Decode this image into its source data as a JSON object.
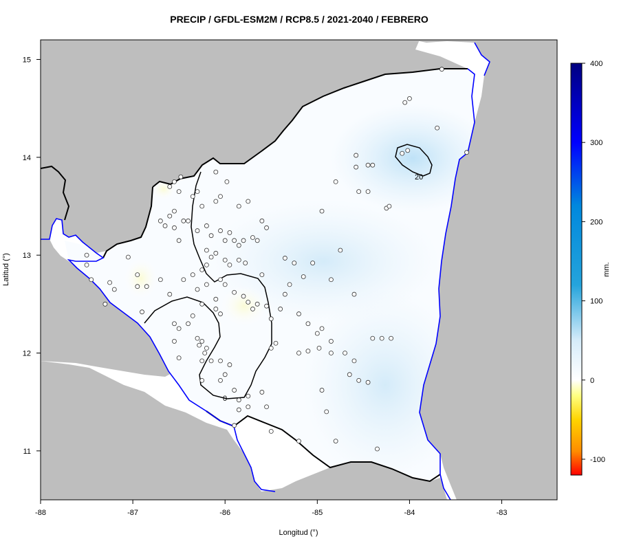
{
  "title": "PRECIP / GFDL-ESM2M / RCP8.5 / 2021-2040 / FEBRERO",
  "x_axis": {
    "label": "Longitud (°)",
    "ticks": [
      {
        "value": -88,
        "label": "-88"
      },
      {
        "value": -87,
        "label": "-87"
      },
      {
        "value": -86,
        "label": "-86"
      },
      {
        "value": -85,
        "label": "-85"
      },
      {
        "value": -84,
        "label": "-84"
      },
      {
        "value": -83,
        "label": "-83"
      }
    ],
    "range": [
      -88,
      -82.4
    ]
  },
  "y_axis": {
    "label": "Latitud (°)",
    "ticks": [
      {
        "value": 11,
        "label": "11"
      },
      {
        "value": 12,
        "label": "12"
      },
      {
        "value": 13,
        "label": "13"
      },
      {
        "value": 14,
        "label": "14"
      },
      {
        "value": 15,
        "label": "15"
      }
    ],
    "range": [
      10.5,
      15.2
    ]
  },
  "colorbar": {
    "unit_label": "mm.",
    "min": -120,
    "max": 400,
    "ticks": [
      {
        "value": -100,
        "label": "-100"
      },
      {
        "value": 0,
        "label": "0"
      },
      {
        "value": 100,
        "label": "100"
      },
      {
        "value": 200,
        "label": "200"
      },
      {
        "value": 300,
        "label": "300"
      },
      {
        "value": 400,
        "label": "400"
      }
    ],
    "stops": [
      {
        "value": -120,
        "color": "#ff0000"
      },
      {
        "value": -90,
        "color": "#ff8c00"
      },
      {
        "value": -50,
        "color": "#ffd400"
      },
      {
        "value": -20,
        "color": "#ffff80"
      },
      {
        "value": 0,
        "color": "#ffffff"
      },
      {
        "value": 50,
        "color": "#d6ecfa"
      },
      {
        "value": 120,
        "color": "#25a4dc"
      },
      {
        "value": 220,
        "color": "#0088dd"
      },
      {
        "value": 300,
        "color": "#0000ff"
      },
      {
        "value": 400,
        "color": "#000080"
      }
    ]
  },
  "contours": [
    {
      "level": 0,
      "label": "0",
      "label_pos": [
        -86,
        11.52
      ]
    },
    {
      "level": 20,
      "label": "20",
      "label_pos": [
        -84.08,
        13.8
      ]
    }
  ],
  "colors": {
    "land_outside": "#bebebe",
    "water": "#ffffff",
    "coastline": "#0000ff",
    "border": "#000000",
    "contour": "#000000",
    "station_fill": "#ffffff",
    "station_stroke": "#333333"
  },
  "stations": [
    [
      -87.5,
      13.0
    ],
    [
      -87.5,
      12.9
    ],
    [
      -87.45,
      12.75
    ],
    [
      -87.25,
      12.72
    ],
    [
      -87.2,
      12.65
    ],
    [
      -87.3,
      12.5
    ],
    [
      -87.05,
      12.98
    ],
    [
      -86.95,
      12.8
    ],
    [
      -86.95,
      12.68
    ],
    [
      -86.85,
      12.68
    ],
    [
      -86.9,
      12.42
    ],
    [
      -86.7,
      12.75
    ],
    [
      -86.6,
      12.6
    ],
    [
      -86.55,
      12.3
    ],
    [
      -86.55,
      12.12
    ],
    [
      -86.5,
      11.95
    ],
    [
      -86.7,
      13.35
    ],
    [
      -86.6,
      13.4
    ],
    [
      -86.65,
      13.3
    ],
    [
      -86.55,
      13.45
    ],
    [
      -86.55,
      13.28
    ],
    [
      -86.5,
      13.15
    ],
    [
      -86.45,
      13.35
    ],
    [
      -86.4,
      13.35
    ],
    [
      -86.3,
      13.25
    ],
    [
      -86.35,
      13.6
    ],
    [
      -86.5,
      13.65
    ],
    [
      -86.6,
      13.7
    ],
    [
      -86.55,
      13.75
    ],
    [
      -86.48,
      13.8
    ],
    [
      -86.3,
      13.65
    ],
    [
      -86.25,
      13.5
    ],
    [
      -86.1,
      13.55
    ],
    [
      -86.05,
      13.6
    ],
    [
      -86.1,
      13.85
    ],
    [
      -85.98,
      13.75
    ],
    [
      -85.85,
      13.5
    ],
    [
      -85.75,
      13.55
    ],
    [
      -85.6,
      13.35
    ],
    [
      -85.55,
      13.28
    ],
    [
      -86.2,
      13.3
    ],
    [
      -86.15,
      13.2
    ],
    [
      -86.05,
      13.25
    ],
    [
      -85.95,
      13.23
    ],
    [
      -86.0,
      13.15
    ],
    [
      -85.9,
      13.15
    ],
    [
      -85.85,
      13.1
    ],
    [
      -85.8,
      13.15
    ],
    [
      -85.7,
      13.18
    ],
    [
      -85.65,
      13.15
    ],
    [
      -86.2,
      13.05
    ],
    [
      -86.15,
      12.98
    ],
    [
      -86.1,
      13.02
    ],
    [
      -86.0,
      12.95
    ],
    [
      -85.95,
      12.9
    ],
    [
      -85.85,
      12.95
    ],
    [
      -85.78,
      12.92
    ],
    [
      -86.2,
      12.9
    ],
    [
      -86.25,
      12.85
    ],
    [
      -86.35,
      12.8
    ],
    [
      -86.45,
      12.75
    ],
    [
      -86.3,
      12.65
    ],
    [
      -86.2,
      12.7
    ],
    [
      -86.05,
      12.75
    ],
    [
      -86.0,
      12.7
    ],
    [
      -85.9,
      12.62
    ],
    [
      -85.8,
      12.58
    ],
    [
      -85.75,
      12.52
    ],
    [
      -85.7,
      12.45
    ],
    [
      -85.65,
      12.5
    ],
    [
      -86.25,
      12.5
    ],
    [
      -86.1,
      12.45
    ],
    [
      -86.05,
      12.4
    ],
    [
      -86.1,
      12.55
    ],
    [
      -86.35,
      12.38
    ],
    [
      -86.4,
      12.3
    ],
    [
      -86.5,
      12.25
    ],
    [
      -86.3,
      12.15
    ],
    [
      -86.25,
      12.12
    ],
    [
      -86.28,
      12.08
    ],
    [
      -86.2,
      12.05
    ],
    [
      -86.22,
      12.0
    ],
    [
      -86.25,
      11.92
    ],
    [
      -86.15,
      11.92
    ],
    [
      -86.05,
      11.92
    ],
    [
      -85.95,
      11.88
    ],
    [
      -86.0,
      11.78
    ],
    [
      -86.05,
      11.72
    ],
    [
      -86.25,
      11.72
    ],
    [
      -85.9,
      11.62
    ],
    [
      -85.85,
      11.52
    ],
    [
      -85.75,
      11.56
    ],
    [
      -85.6,
      11.6
    ],
    [
      -85.55,
      11.45
    ],
    [
      -85.75,
      11.45
    ],
    [
      -85.85,
      11.42
    ],
    [
      -85.9,
      11.26
    ],
    [
      -85.5,
      11.2
    ],
    [
      -85.2,
      11.1
    ],
    [
      -85.5,
      12.05
    ],
    [
      -85.45,
      12.1
    ],
    [
      -85.5,
      12.35
    ],
    [
      -85.55,
      12.48
    ],
    [
      -85.4,
      12.45
    ],
    [
      -85.35,
      12.6
    ],
    [
      -85.3,
      12.7
    ],
    [
      -85.2,
      12.4
    ],
    [
      -85.1,
      12.3
    ],
    [
      -85.0,
      12.2
    ],
    [
      -84.95,
      12.25
    ],
    [
      -84.98,
      12.05
    ],
    [
      -85.1,
      12.02
    ],
    [
      -85.2,
      12.0
    ],
    [
      -84.85,
      12.0
    ],
    [
      -84.85,
      12.12
    ],
    [
      -84.7,
      12.0
    ],
    [
      -84.6,
      11.92
    ],
    [
      -84.65,
      11.78
    ],
    [
      -84.55,
      11.72
    ],
    [
      -84.45,
      11.7
    ],
    [
      -84.4,
      12.15
    ],
    [
      -84.3,
      12.15
    ],
    [
      -84.2,
      12.15
    ],
    [
      -84.95,
      11.62
    ],
    [
      -84.9,
      11.4
    ],
    [
      -84.8,
      11.1
    ],
    [
      -84.35,
      11.02
    ],
    [
      -85.25,
      12.92
    ],
    [
      -85.35,
      12.97
    ],
    [
      -85.05,
      12.92
    ],
    [
      -85.15,
      12.78
    ],
    [
      -85.6,
      12.8
    ],
    [
      -84.75,
      13.05
    ],
    [
      -84.95,
      13.45
    ],
    [
      -84.8,
      13.75
    ],
    [
      -84.55,
      13.65
    ],
    [
      -84.45,
      13.65
    ],
    [
      -84.25,
      13.48
    ],
    [
      -84.22,
      13.5
    ],
    [
      -84.58,
      14.02
    ],
    [
      -84.58,
      13.9
    ],
    [
      -84.45,
      13.92
    ],
    [
      -84.4,
      13.92
    ],
    [
      -84.08,
      14.04
    ],
    [
      -84.02,
      14.07
    ],
    [
      -84.0,
      14.6
    ],
    [
      -84.05,
      14.56
    ],
    [
      -83.7,
      14.3
    ],
    [
      -83.38,
      14.05
    ],
    [
      -83.65,
      14.9
    ],
    [
      -84.85,
      12.75
    ],
    [
      -84.6,
      12.6
    ]
  ]
}
